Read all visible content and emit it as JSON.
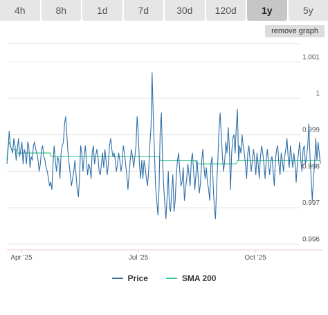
{
  "tabs": [
    {
      "label": "4h",
      "active": false
    },
    {
      "label": "8h",
      "active": false
    },
    {
      "label": "1d",
      "active": false
    },
    {
      "label": "7d",
      "active": false
    },
    {
      "label": "30d",
      "active": false
    },
    {
      "label": "120d",
      "active": false
    },
    {
      "label": "1y",
      "active": true
    },
    {
      "label": "5y",
      "active": false
    }
  ],
  "remove_graph_label": "remove graph",
  "chart_data": {
    "type": "line",
    "x_ticks": [
      "Apr '25",
      "Jul '25",
      "Oct '25"
    ],
    "y_ticks": [
      "0.996",
      "0.997",
      "0.998",
      "0.999",
      "1",
      "1.001"
    ],
    "ylim": [
      0.9959,
      1.0015
    ],
    "grid": true,
    "legend_position": "bottom-center",
    "series": [
      {
        "name": "Price",
        "color": "#2f6fa8",
        "values": [
          0.9982,
          0.9986,
          0.9991,
          0.9987,
          0.9986,
          0.9985,
          0.9989,
          0.9987,
          0.9983,
          0.9986,
          0.9989,
          0.9984,
          0.9986,
          0.9988,
          0.9982,
          0.9986,
          0.9985,
          0.9982,
          0.9988,
          0.9987,
          0.9981,
          0.9984,
          0.9983,
          0.9987,
          0.9988,
          0.9986,
          0.9985,
          0.9983,
          0.998,
          0.9982,
          0.9986,
          0.9987,
          0.9984,
          0.9983,
          0.9981,
          0.998,
          0.9978,
          0.9976,
          0.9977,
          0.9975,
          0.9982,
          0.9987,
          0.9983,
          0.998,
          0.9984,
          0.9983,
          0.9978,
          0.9985,
          0.9987,
          0.9988,
          0.9993,
          0.9995,
          0.999,
          0.9985,
          0.9982,
          0.9979,
          0.9976,
          0.9978,
          0.998,
          0.9983,
          0.9979,
          0.9975,
          0.9973,
          0.9978,
          0.9987,
          0.9985,
          0.998,
          0.9984,
          0.9987,
          0.9983,
          0.9979,
          0.9982,
          0.9981,
          0.9978,
          0.9985,
          0.9987,
          0.9982,
          0.9984,
          0.9986,
          0.9984,
          0.998,
          0.9979,
          0.9982,
          0.9985,
          0.9981,
          0.9986,
          0.9983,
          0.9979,
          0.9982,
          0.9987,
          0.9989,
          0.9986,
          0.9984,
          0.9985,
          0.9983,
          0.998,
          0.9982,
          0.9985,
          0.9983,
          0.998,
          0.9982,
          0.9987,
          0.9985,
          0.9982,
          0.9979,
          0.9975,
          0.9979,
          0.9983,
          0.9986,
          0.9984,
          0.9981,
          0.9984,
          0.9987,
          0.9995,
          0.999,
          0.9982,
          0.9978,
          0.9983,
          0.9978,
          0.9983,
          0.9981,
          0.9978,
          0.9976,
          0.998,
          0.9987,
          0.9992,
          1.0007,
          0.9995,
          0.9985,
          0.9976,
          0.9972,
          0.9968,
          0.9975,
          0.9991,
          0.9996,
          0.9984,
          0.9976,
          0.9971,
          0.9967,
          0.9973,
          0.998,
          0.997,
          0.9969,
          0.9975,
          0.9979,
          0.9969,
          0.9972,
          0.9979,
          0.9983,
          0.9985,
          0.998,
          0.9976,
          0.9977,
          0.9981,
          0.9972,
          0.9975,
          0.9978,
          0.9982,
          0.9979,
          0.9976,
          0.9983,
          0.9985,
          0.998,
          0.9975,
          0.9979,
          0.9983,
          0.9978,
          0.9974,
          0.9977,
          0.9983,
          0.9986,
          0.9981,
          0.9978,
          0.9981,
          0.9977,
          0.9975,
          0.9972,
          0.9982,
          0.9984,
          0.9976,
          0.997,
          0.9967,
          0.9976,
          0.9983,
          0.9991,
          0.9996,
          0.999,
          0.9984,
          0.998,
          0.9983,
          0.9988,
          0.9985,
          0.9992,
          0.9987,
          0.9975,
          0.9985,
          0.9989,
          0.999,
          0.9985,
          0.9992,
          0.9997,
          0.9983,
          0.9987,
          0.9985,
          0.999,
          0.9987,
          0.9985,
          0.9982,
          0.9978,
          0.9985,
          0.9987,
          0.9983,
          0.998,
          0.9983,
          0.9986,
          0.9983,
          0.9979,
          0.9985,
          0.9982,
          0.9978,
          0.9984,
          0.9987,
          0.9985,
          0.9982,
          0.9978,
          0.9983,
          0.9986,
          0.9982,
          0.9979,
          0.9983,
          0.9984,
          0.998,
          0.9976,
          0.9983,
          0.9986,
          0.9987,
          0.9982,
          0.9979,
          0.9985,
          0.9983,
          0.998,
          0.9984,
          0.9986,
          0.9989,
          0.9984,
          0.9981,
          0.9987,
          0.9984,
          0.9981,
          0.9985,
          0.9982,
          0.9977,
          0.9982,
          0.9985,
          0.9988,
          0.9983,
          0.998,
          0.9986,
          0.9987,
          0.9982,
          0.9984,
          0.9987,
          0.9993,
          0.9984,
          0.9978,
          0.9972,
          0.9978,
          0.9982,
          0.9989,
          0.9983,
          0.9988,
          0.9985,
          0.9982
        ]
      },
      {
        "name": "SMA 200",
        "color": "#3cc889",
        "values": [
          0.9983,
          0.9987,
          0.9988,
          0.9987,
          0.9986,
          0.9986,
          0.9986,
          0.9986,
          0.9986,
          0.9985,
          0.9985,
          0.9985,
          0.9985,
          0.9985,
          0.9985,
          0.9985,
          0.9985,
          0.9985,
          0.9985,
          0.9985,
          0.9985,
          0.9985,
          0.9985,
          0.9985,
          0.9985,
          0.9985,
          0.9985,
          0.9985,
          0.9985,
          0.9985,
          0.9985,
          0.9985,
          0.9985,
          0.9985,
          0.9985,
          0.9985,
          0.9985,
          0.9985,
          0.9985,
          0.9984,
          0.9984,
          0.9984,
          0.9984,
          0.9984,
          0.9984,
          0.9984,
          0.9984,
          0.9984,
          0.9984,
          0.9984,
          0.9984,
          0.9984,
          0.9984,
          0.9984,
          0.9984,
          0.9984,
          0.9984,
          0.9984,
          0.9984,
          0.9984,
          0.9984,
          0.9984,
          0.9984,
          0.9984,
          0.9984,
          0.9984,
          0.9984,
          0.9984,
          0.9984,
          0.9984,
          0.9984,
          0.9984,
          0.9984,
          0.9984,
          0.9984,
          0.9984,
          0.9984,
          0.9984,
          0.9984,
          0.9984,
          0.9984,
          0.9984,
          0.9984,
          0.9984,
          0.9984,
          0.9984,
          0.9984,
          0.9984,
          0.9984,
          0.9984,
          0.9984,
          0.9984,
          0.9984,
          0.9984,
          0.9984,
          0.9984,
          0.9984,
          0.9984,
          0.9984,
          0.9984,
          0.9984,
          0.9984,
          0.9984,
          0.9984,
          0.9984,
          0.9984,
          0.9984,
          0.9984,
          0.9984,
          0.9984,
          0.9984,
          0.9984,
          0.9984,
          0.9984,
          0.9984,
          0.9984,
          0.9984,
          0.9984,
          0.9984,
          0.9984,
          0.9984,
          0.9984,
          0.9984,
          0.9984,
          0.9984,
          0.9984,
          0.9984,
          0.9984,
          0.9984,
          0.9984,
          0.9984,
          0.9984,
          0.9984,
          0.9984,
          0.9984,
          0.9983,
          0.9983,
          0.9983,
          0.9983,
          0.9983,
          0.9983,
          0.9983,
          0.9983,
          0.9983,
          0.9983,
          0.9983,
          0.9983,
          0.9983,
          0.9983,
          0.9983,
          0.9983,
          0.9983,
          0.9983,
          0.9983,
          0.9983,
          0.9983,
          0.9983,
          0.9983,
          0.9983,
          0.9983,
          0.9983,
          0.9983,
          0.9983,
          0.9983,
          0.9983,
          0.9983,
          0.9983,
          0.9982,
          0.9982,
          0.9982,
          0.9982,
          0.9982,
          0.9982,
          0.9982,
          0.9982,
          0.9982,
          0.9982,
          0.9982,
          0.9982,
          0.9982,
          0.9982,
          0.9982,
          0.9982,
          0.9982,
          0.9982,
          0.9982,
          0.9982,
          0.9982,
          0.9982,
          0.9982,
          0.9982,
          0.9982,
          0.9982,
          0.9982,
          0.9982,
          0.9982,
          0.9982,
          0.9982,
          0.9982,
          0.9982,
          0.9982,
          0.9982,
          0.9982,
          0.9983,
          0.9983,
          0.9983,
          0.9983,
          0.9983,
          0.9983,
          0.9983,
          0.9983,
          0.9983,
          0.9983,
          0.9983,
          0.9983,
          0.9983,
          0.9983,
          0.9983,
          0.9983,
          0.9983,
          0.9983,
          0.9983,
          0.9983,
          0.9983,
          0.9983,
          0.9983,
          0.9983,
          0.9983,
          0.9983,
          0.9983,
          0.9983,
          0.9983,
          0.9983,
          0.9983,
          0.9983,
          0.9983,
          0.9983,
          0.9983,
          0.9983,
          0.9983,
          0.9983,
          0.9983,
          0.9983,
          0.9983,
          0.9983,
          0.9983,
          0.9983,
          0.9983,
          0.9983,
          0.9983,
          0.9983,
          0.9983,
          0.9983,
          0.9983,
          0.9983,
          0.9983,
          0.9983,
          0.9983,
          0.9983,
          0.9983,
          0.9983,
          0.9983,
          0.9983,
          0.9983,
          0.9983,
          0.9983,
          0.9983,
          0.9983,
          0.9983,
          0.9983,
          0.9983,
          0.9983,
          0.9983,
          0.9983,
          0.9983,
          0.9983,
          0.9983
        ]
      }
    ]
  }
}
